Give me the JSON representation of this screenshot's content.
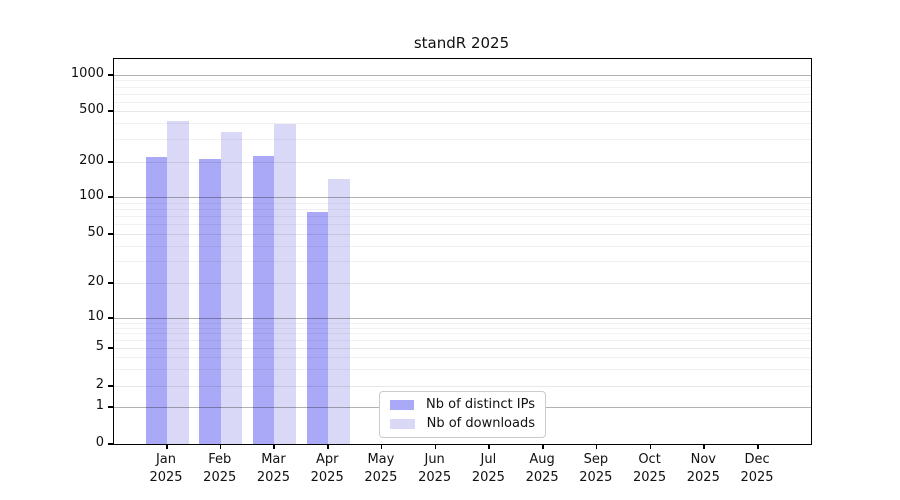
{
  "title": "standR 2025",
  "chart_data": {
    "type": "bar",
    "title": "standR 2025",
    "categories": [
      "Jan 2025",
      "Feb 2025",
      "Mar 2025",
      "Apr 2025",
      "May 2025",
      "Jun 2025",
      "Jul 2025",
      "Aug 2025",
      "Sep 2025",
      "Oct 2025",
      "Nov 2025",
      "Dec 2025"
    ],
    "series": [
      {
        "name": "Nb of distinct IPs",
        "key": "ips",
        "color": "#a9a9f7",
        "values": [
          218,
          210,
          222,
          75,
          null,
          null,
          null,
          null,
          null,
          null,
          null,
          null
        ]
      },
      {
        "name": "Nb of downloads",
        "key": "downloads",
        "color": "#d9d9f7",
        "values": [
          420,
          345,
          395,
          142,
          null,
          null,
          null,
          null,
          null,
          null,
          null,
          null
        ]
      }
    ],
    "xlabel": "",
    "ylabel": "",
    "yscale": "pseudo-log",
    "yticks": [
      0,
      1,
      2,
      5,
      10,
      20,
      50,
      100,
      200,
      500,
      1000
    ],
    "ylim": [
      0,
      1200
    ],
    "grid": true,
    "legend_position": "lower-center-inside"
  },
  "colors": {
    "bar_ips": "#a9a9f7",
    "bar_downloads": "#d9d9f7",
    "axis": "#000000",
    "grid_major": "#b5b5b5",
    "grid_labeled": "#e8e8e8",
    "grid_minor": "#f2f2f2",
    "legend_border": "#cbcbcb",
    "background": "#ffffff"
  }
}
